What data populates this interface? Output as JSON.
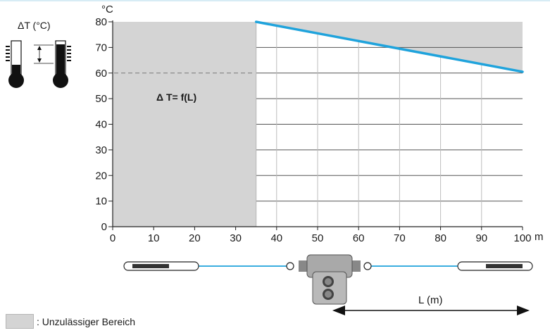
{
  "chart_data": {
    "type": "line",
    "title": "",
    "ylabel": "°C",
    "xlabel": "",
    "x_unit": "m",
    "xlim": [
      0,
      100
    ],
    "ylim": [
      0,
      80
    ],
    "x_ticks": [
      0,
      10,
      20,
      30,
      40,
      50,
      60,
      70,
      80,
      90,
      100
    ],
    "y_ticks": [
      0,
      10,
      20,
      30,
      40,
      50,
      60,
      70,
      80
    ],
    "grid": true,
    "series": [
      {
        "name": "",
        "color": "#1fa3dc",
        "x": [
          35,
          100
        ],
        "y": [
          80,
          60.5
        ]
      }
    ],
    "forbidden_region": {
      "x": [
        0,
        35
      ],
      "fill": "#d4d4d4"
    },
    "dashed_reference_y": 60,
    "annotation": "Δ T= f(L)"
  },
  "inset": {
    "label": "ΔT (°C)"
  },
  "diagram": {
    "length_label": "L (m)"
  },
  "legend": {
    "text": ": Unzulässiger Bereich"
  },
  "colors": {
    "accent": "#1fa3dc",
    "region": "#d4d4d4",
    "grid": "#555555"
  }
}
